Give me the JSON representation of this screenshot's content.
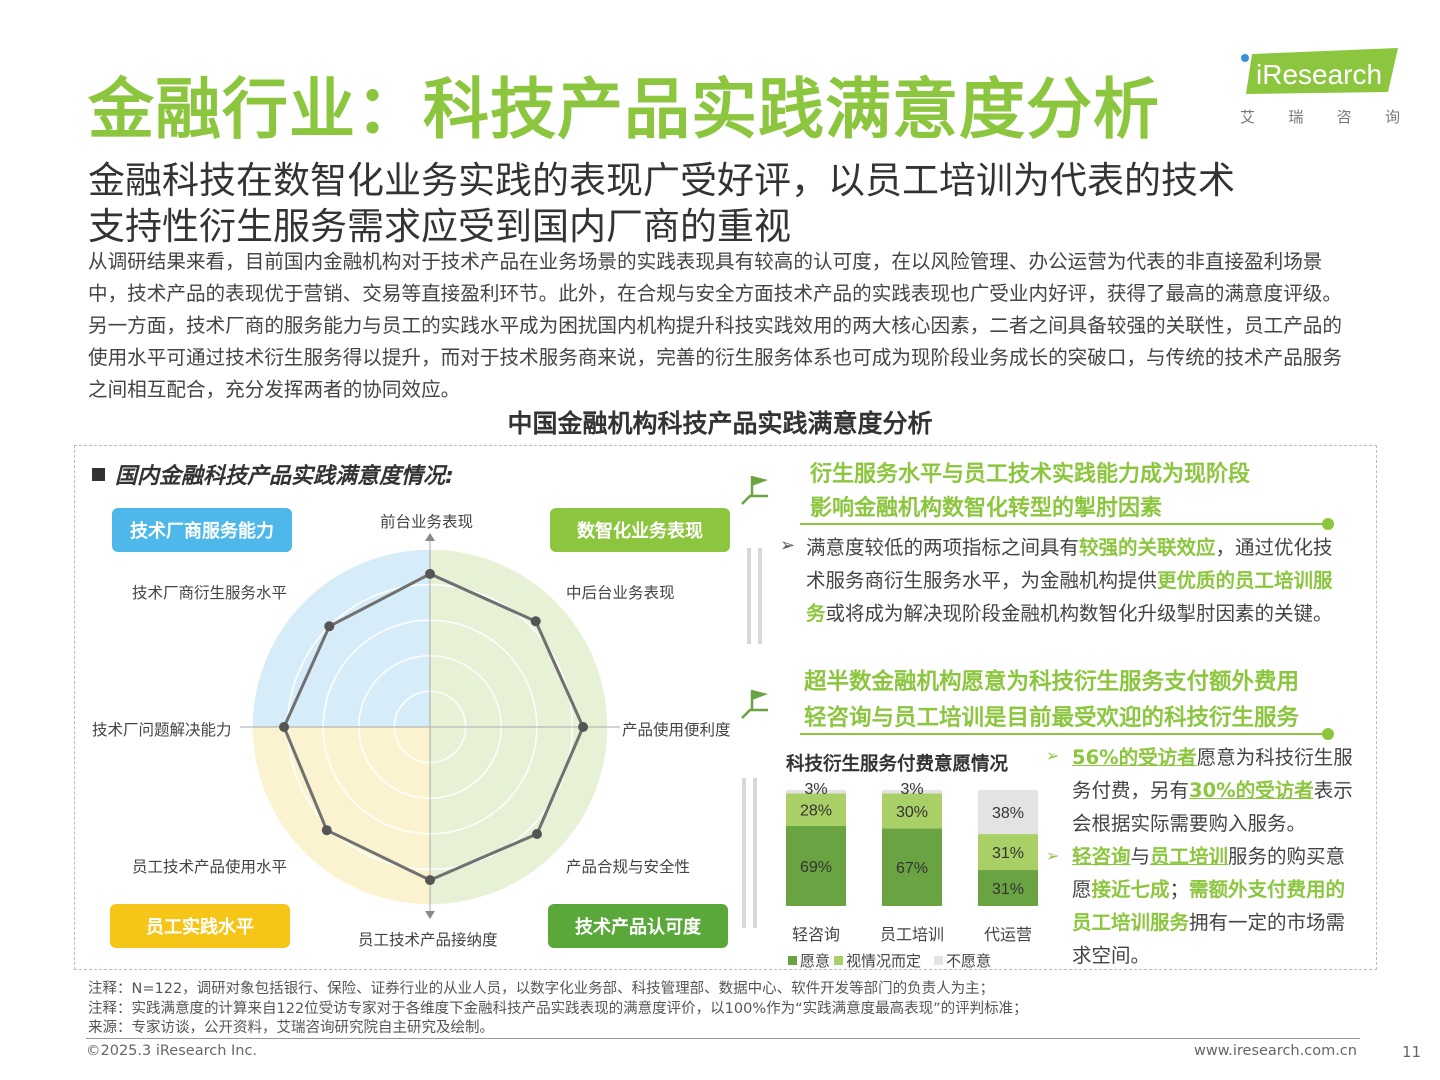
{
  "header": {
    "title": "金融行业：科技产品实践满意度分析",
    "logo_text": "iResearch",
    "logo_tag": [
      "艾",
      "瑞",
      "咨",
      "询"
    ]
  },
  "subtitle": {
    "line1": "金融科技在数智化业务实践的表现广受好评，以员工培训为代表的技术",
    "line2": "支持性衍生服务需求应受到国内厂商的重视"
  },
  "body_paragraph": "从调研结果来看，目前国内金融机构对于技术产品在业务场景的实践表现具有较高的认可度，在以风险管理、办公运营为代表的非直接盈利场景中，技术产品的表现优于营销、交易等直接盈利环节。此外，在合规与安全方面技术产品的实践表现也广受业内好评，获得了最高的满意度评级。另一方面，技术厂商的服务能力与员工的实践水平成为困扰国内机构提升科技实践效用的两大核心因素，二者之间具备较强的关联性，员工产品的使用水平可通过技术衍生服务得以提升，而对于技术服务商来说，完善的衍生服务体系也可成为现阶段业务成长的突破口，与传统的技术产品服务之间相互配合，充分发挥两者的协同效应。",
  "chart_title": "中国金融机构科技产品实践满意度分析",
  "left_panel": {
    "section_head": "国内金融科技产品实践满意度情况:",
    "quadrants": {
      "top_left": "技术厂商服务能力",
      "top_right": "数智化业务表现",
      "bottom_left": "员工实践水平",
      "bottom_right": "技术产品认可度"
    }
  },
  "right_panel": {
    "head1_line1": "衍生服务水平与员工技术实践能力成为现阶段",
    "head1_line2": "影响金融机构数智化转型的掣肘因素",
    "p1": {
      "a": "满意度较低的两项指标之间具有",
      "b": "较强的关联效应",
      "c": "，通过优化技术服务商衍生服务水平，为金融机构提供",
      "d": "更优质的员工培训服务",
      "e": "或将成为解决现阶段金融机构数智化升级掣肘因素的关键。"
    },
    "head2_line1": "超半数金融机构愿意为科技衍生服务支付额外费用",
    "head2_line2": "轻咨询与员工培训是目前最受欢迎的科技衍生服务",
    "bar_title": "科技衍生服务付费意愿情况",
    "p2": {
      "a": "56%的受访者",
      "b": "愿意为科技衍生服务付费，另有",
      "c": "30%的受访者",
      "d": "表示会根据实际需要购入服务。"
    },
    "p3": {
      "a": "轻咨询",
      "b": "与",
      "c": "员工培训",
      "d": "服务的购买意愿",
      "e": "接近七成",
      "f": "；",
      "g": "需额外支付费用的员工培训服务",
      "h": "拥有一定的市场需求空间。"
    }
  },
  "chart_data": [
    {
      "type": "radar",
      "axes": [
        "前台业务表现",
        "中后台业务表现",
        "产品使用便利度",
        "产品合规与安全性",
        "员工技术产品接纳度",
        "员工技术产品使用水平",
        "技术厂问题解决能力",
        "技术厂商衍生服务水平"
      ],
      "values": [
        0.86,
        0.84,
        0.86,
        0.85,
        0.86,
        0.82,
        0.82,
        0.8
      ],
      "rmax": 1.0,
      "colors": {
        "line": "#707070",
        "tl": "#d6ecf8",
        "tr": "#e6f1d5",
        "bl": "#fbf3cf",
        "br": "#e6f1d5"
      }
    },
    {
      "type": "bar",
      "stacked": true,
      "title": "科技衍生服务付费意愿情况",
      "categories": [
        "轻咨询",
        "员工培训",
        "代运营"
      ],
      "series": [
        {
          "name": "愿意",
          "values": [
            69,
            67,
            31
          ],
          "color": "#6aa341"
        },
        {
          "name": "视情况而定",
          "values": [
            28,
            30,
            31
          ],
          "color": "#a9d066"
        },
        {
          "name": "不愿意",
          "values": [
            3,
            3,
            38
          ],
          "color": "#e3e3e3"
        }
      ],
      "ylim": [
        0,
        100
      ]
    }
  ],
  "notes": {
    "n1": "注释：N=122，调研对象包括银行、保险、证券行业的从业人员，以数字化业务部、科技管理部、数据中心、软件开发等部门的负责人为主；",
    "n2": "注释：实践满意度的计算来自122位受访专家对于各维度下金融科技产品实践表现的满意度评价，以100%作为“实践满意度最高表现”的评判标准；",
    "n3": "来源：专家访谈，公开资料，艾瑞咨询研究院自主研究及绘制。"
  },
  "footer": {
    "copyright": "©2025.3 iResearch Inc.",
    "url": "www.iresearch.com.cn",
    "page": "11"
  }
}
